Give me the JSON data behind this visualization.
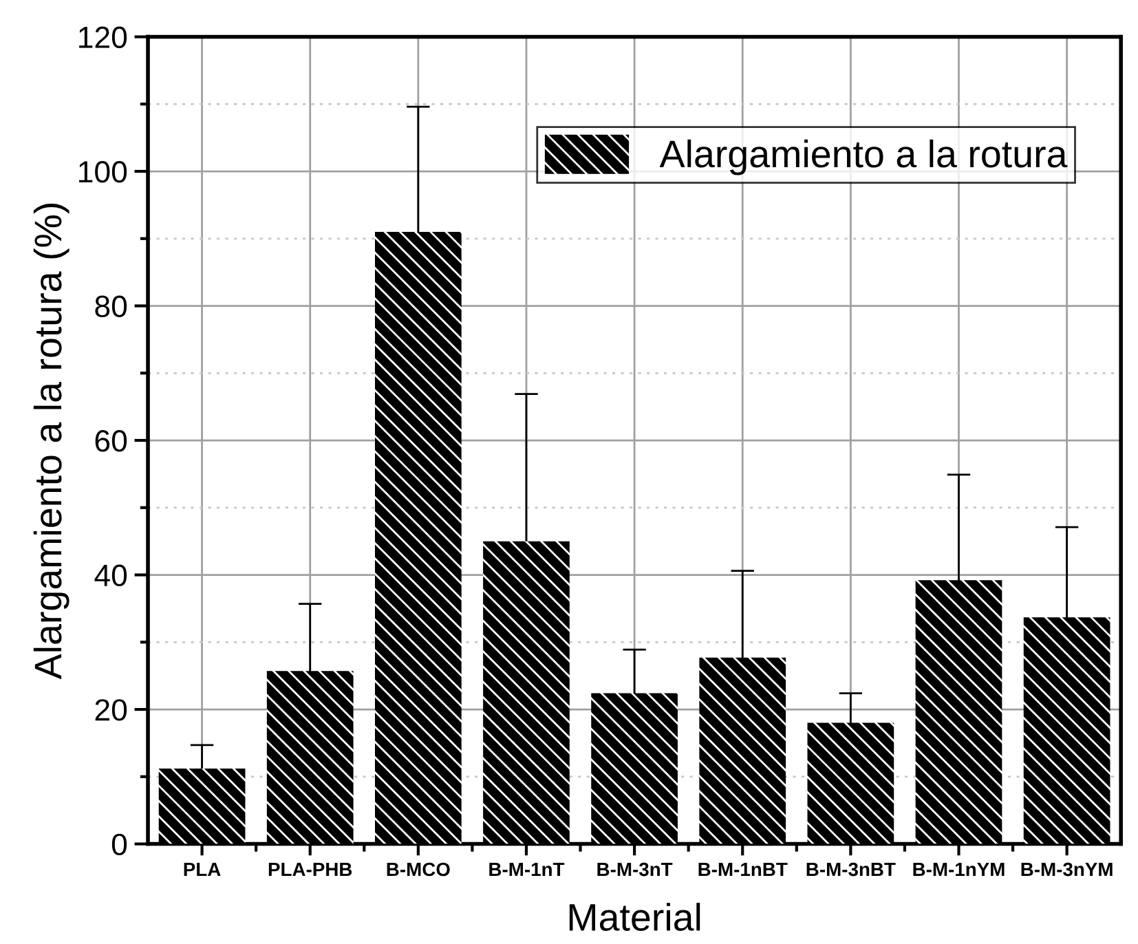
{
  "chart_data": {
    "type": "bar",
    "xlabel": "Material",
    "ylabel": "Alargamiento a la rotura (%)",
    "categories": [
      "PLA",
      "PLA-PHB",
      "B-MCO",
      "B-M-1nT",
      "B-M-3nT",
      "B-M-1nBT",
      "B-M-3nBT",
      "B-M-1nYM",
      "B-M-3nYM"
    ],
    "series": [
      {
        "name": "Alargamiento a la rotura",
        "color": "#000000",
        "values": [
          11.2,
          25.7,
          91.0,
          45.0,
          22.4,
          27.7,
          18.0,
          39.2,
          33.7
        ],
        "errors": [
          3.5,
          10.0,
          18.6,
          21.9,
          6.5,
          12.9,
          4.4,
          15.7,
          13.4
        ]
      }
    ],
    "ylim": [
      0,
      120
    ],
    "yticks": [
      0,
      20,
      40,
      60,
      80,
      100,
      120
    ],
    "grid": true,
    "legend": "top right"
  }
}
